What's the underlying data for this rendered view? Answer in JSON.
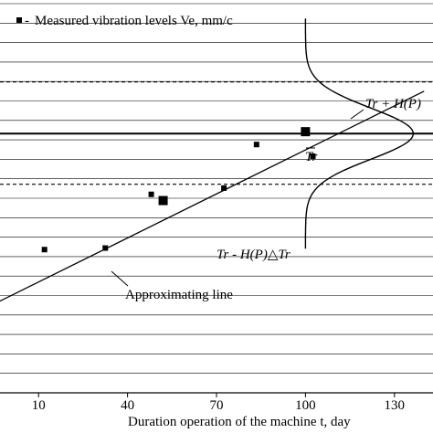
{
  "chart_data": {
    "type": "scatter",
    "xlabel": "Duration operation of the machine t, day",
    "x_ticks": [
      10,
      40,
      70,
      100,
      130
    ],
    "x_tick_labels": [
      "10",
      "40",
      "70",
      "100",
      "130"
    ],
    "xlim": [
      -3,
      143
    ],
    "ylim": [
      0,
      100
    ],
    "y_grid_count": 21,
    "grid": "horizontal",
    "legend": {
      "position": "top-left",
      "marker_label": "-",
      "text": "Measured vibration levels  Ve, mm/c"
    },
    "series": [
      {
        "name": "Measured vibration levels  Ve, mm/c",
        "points": [
          {
            "x": -4,
            "y": 23.2
          },
          {
            "x": 12,
            "y": 36.8
          },
          {
            "x": 32.5,
            "y": 37.2
          },
          {
            "x": 48,
            "y": 51
          },
          {
            "x": 72.5,
            "y": 52.6
          },
          {
            "x": 83.5,
            "y": 63.8
          },
          {
            "x": 102.5,
            "y": 60.8
          }
        ]
      }
    ],
    "approximating_line": {
      "x_start": -4,
      "y_start": 23.2,
      "x_end": 140,
      "y_end": 77.5
    },
    "special_points": [
      {
        "x": 52,
        "y": 49.4
      },
      {
        "x": 100,
        "y": 67.1
      }
    ],
    "levels": {
      "tr": 66.6,
      "upper": 79.9,
      "lower": 53.6
    },
    "annotations": {
      "approx_line": "Approximating line",
      "tr": "Tr",
      "upper": "Tr + H(P)",
      "lower": "Tr - H(P)△Tr"
    }
  },
  "colors": {
    "axis": "#000000",
    "grid": "#000000",
    "background": "#ffffff"
  }
}
